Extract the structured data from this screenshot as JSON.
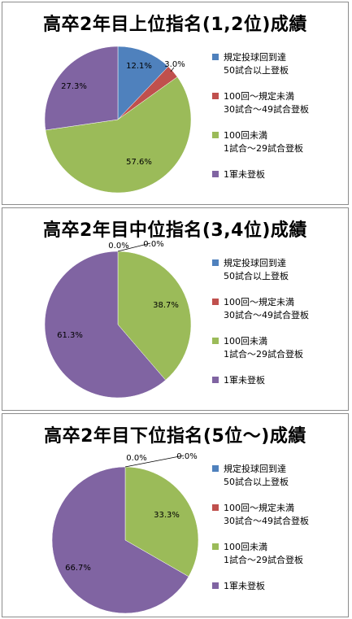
{
  "colors": {
    "blue": "#4f81bd",
    "red": "#c0504d",
    "green": "#9bbb59",
    "purple": "#8064a2"
  },
  "legend": [
    {
      "line1": "規定投球回到達",
      "line2": "50試合以上登板",
      "color": "#4f81bd"
    },
    {
      "line1": "100回～規定未満",
      "line2": "30試合～49試合登板",
      "color": "#c0504d"
    },
    {
      "line1": "100回未満",
      "line2": "1試合～29試合登板",
      "color": "#9bbb59"
    },
    {
      "line1": "1軍未登板",
      "line2": "",
      "color": "#8064a2"
    }
  ],
  "chart_data": [
    {
      "type": "pie",
      "title": "高卒2年目上位指名(1,2位)成績",
      "labels": [
        "規定投球回到達 50試合以上登板",
        "100回～規定未満 30試合～49試合登板",
        "100回未満 1試合～29試合登板",
        "1軍未登板"
      ],
      "values": [
        12.1,
        3.0,
        57.6,
        27.3
      ],
      "value_labels": [
        "12.1%",
        "3.0%",
        "57.6%",
        "27.3%"
      ],
      "legend_position": "right"
    },
    {
      "type": "pie",
      "title": "高卒2年目中位指名(3,4位)成績",
      "labels": [
        "規定投球回到達 50試合以上登板",
        "100回～規定未満 30試合～49試合登板",
        "100回未満 1試合～29試合登板",
        "1軍未登板"
      ],
      "values": [
        0.0,
        0.0,
        38.7,
        61.3
      ],
      "value_labels": [
        "0.0%",
        "0.0%",
        "38.7%",
        "61.3%"
      ],
      "legend_position": "right"
    },
    {
      "type": "pie",
      "title": "高卒2年目下位指名(5位～)成績",
      "labels": [
        "規定投球回到達 50試合以上登板",
        "100回～規定未満 30試合～49試合登板",
        "100回未満 1試合～29試合登板",
        "1軍未登板"
      ],
      "values": [
        0.0,
        0.0,
        33.3,
        66.7
      ],
      "value_labels": [
        "0.0%",
        "0.0%",
        "33.3%",
        "66.7%"
      ],
      "legend_position": "right"
    }
  ]
}
